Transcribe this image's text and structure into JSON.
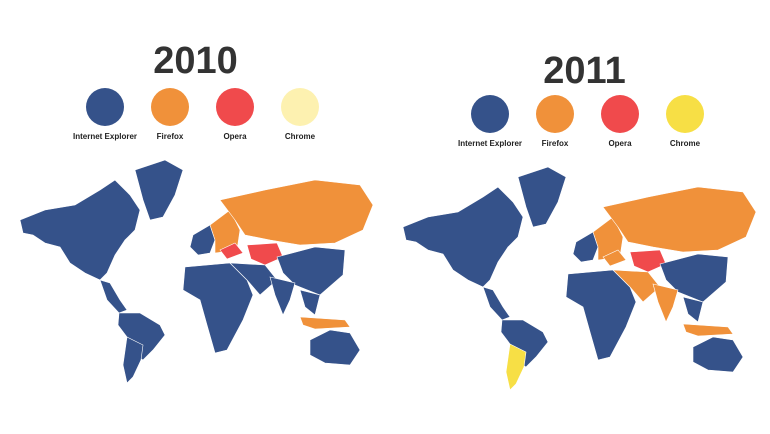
{
  "browsers": {
    "ie": {
      "label": "Internet Explorer",
      "color": "#35528a"
    },
    "firefox": {
      "label": "Firefox",
      "color": "#f0913a"
    },
    "opera": {
      "label": "Opera",
      "color": "#f04a4c"
    }
  },
  "panels": [
    {
      "year": "2010",
      "chrome_color": "#fdf1b0",
      "legend": [
        "Internet Explorer",
        "Firefox",
        "Opera",
        "Chrome"
      ],
      "regions": {
        "north_america": "ie",
        "greenland": "ie",
        "central_america": "ie",
        "south_america": "ie",
        "argentina": "ie",
        "west_europe": "ie",
        "east_europe": "firefox",
        "russia": "firefox",
        "kazakhstan": "opera",
        "ukraine": "opera",
        "africa": "ie",
        "middle_east": "ie",
        "china": "ie",
        "india": "ie",
        "southeast_asia": "ie",
        "indonesia": "firefox",
        "australia": "ie"
      }
    },
    {
      "year": "2011",
      "chrome_color": "#f7df45",
      "legend": [
        "Internet Explorer",
        "Firefox",
        "Opera",
        "Chrome"
      ],
      "regions": {
        "north_america": "ie",
        "greenland": "ie",
        "central_america": "ie",
        "south_america": "ie",
        "argentina": "chrome",
        "west_europe": "ie",
        "east_europe": "firefox",
        "russia": "firefox",
        "kazakhstan": "opera",
        "ukraine": "firefox",
        "africa": "ie",
        "middle_east": "firefox",
        "china": "ie",
        "india": "firefox",
        "southeast_asia": "ie",
        "indonesia": "firefox",
        "australia": "ie"
      }
    }
  ]
}
